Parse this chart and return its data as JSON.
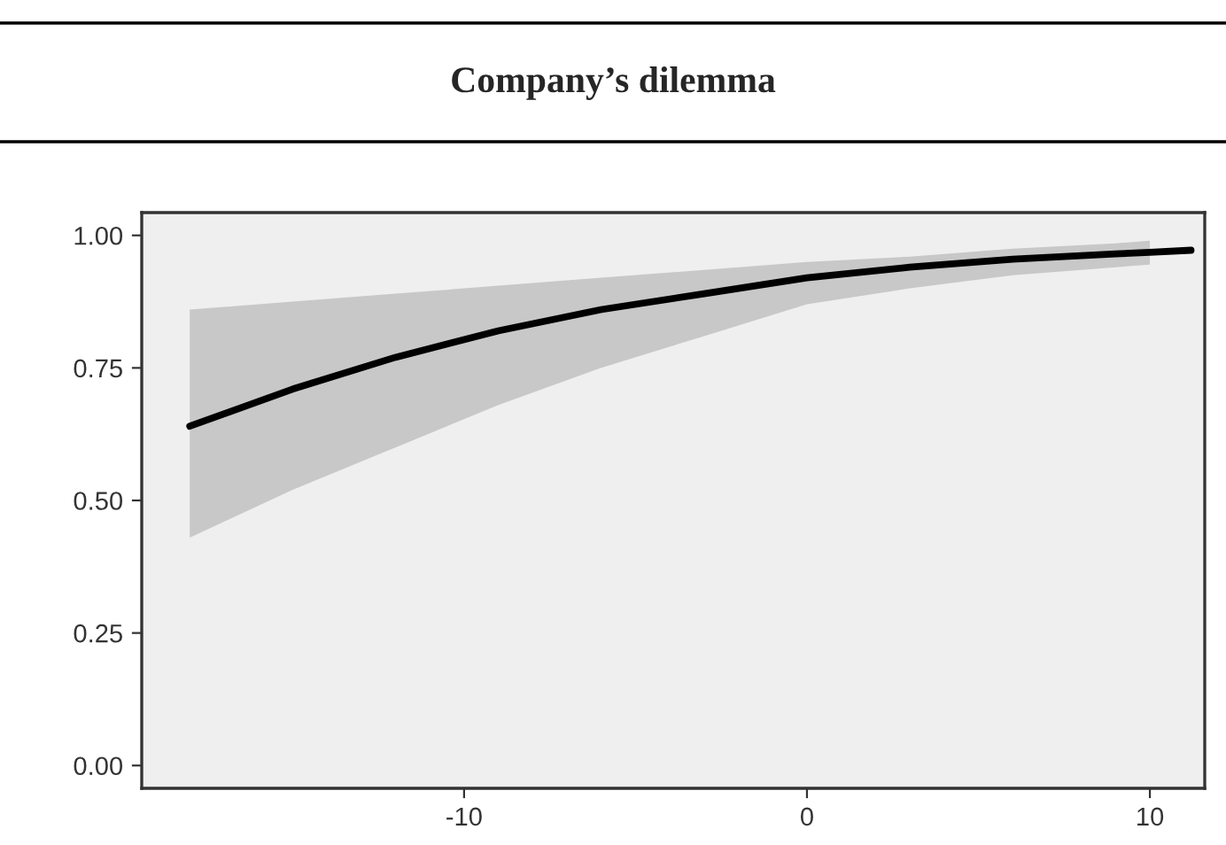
{
  "chart_data": {
    "type": "line",
    "title": "Company’s dilemma",
    "xlim": [
      -19.4,
      11.6
    ],
    "ylim": [
      -0.043,
      1.043
    ],
    "xticks": [
      -10,
      0,
      10
    ],
    "yticks": [
      {
        "value": 0,
        "label": "0.00"
      },
      {
        "value": 0.25,
        "label": "0.25"
      },
      {
        "value": 0.5,
        "label": "0.50"
      },
      {
        "value": 0.75,
        "label": "0.75"
      },
      {
        "value": 1,
        "label": "1.00"
      }
    ],
    "grid": false,
    "legend": false,
    "marker": "none",
    "line_style": "solid",
    "series": [
      {
        "color": "#000000",
        "x": [
          -18,
          -15,
          -12,
          -9,
          -6,
          -3,
          0,
          3,
          6,
          9,
          10,
          11.2
        ],
        "values": [
          0.64,
          0.71,
          0.77,
          0.82,
          0.86,
          0.89,
          0.92,
          0.94,
          0.955,
          0.965,
          0.968,
          0.972
        ],
        "lower": [
          0.43,
          0.52,
          0.6,
          0.68,
          0.75,
          0.81,
          0.87,
          0.9,
          0.925,
          0.94,
          0.945,
          null
        ],
        "upper": [
          0.86,
          0.875,
          0.89,
          0.905,
          0.92,
          0.935,
          0.95,
          0.96,
          0.975,
          0.985,
          0.99,
          null
        ]
      }
    ]
  }
}
